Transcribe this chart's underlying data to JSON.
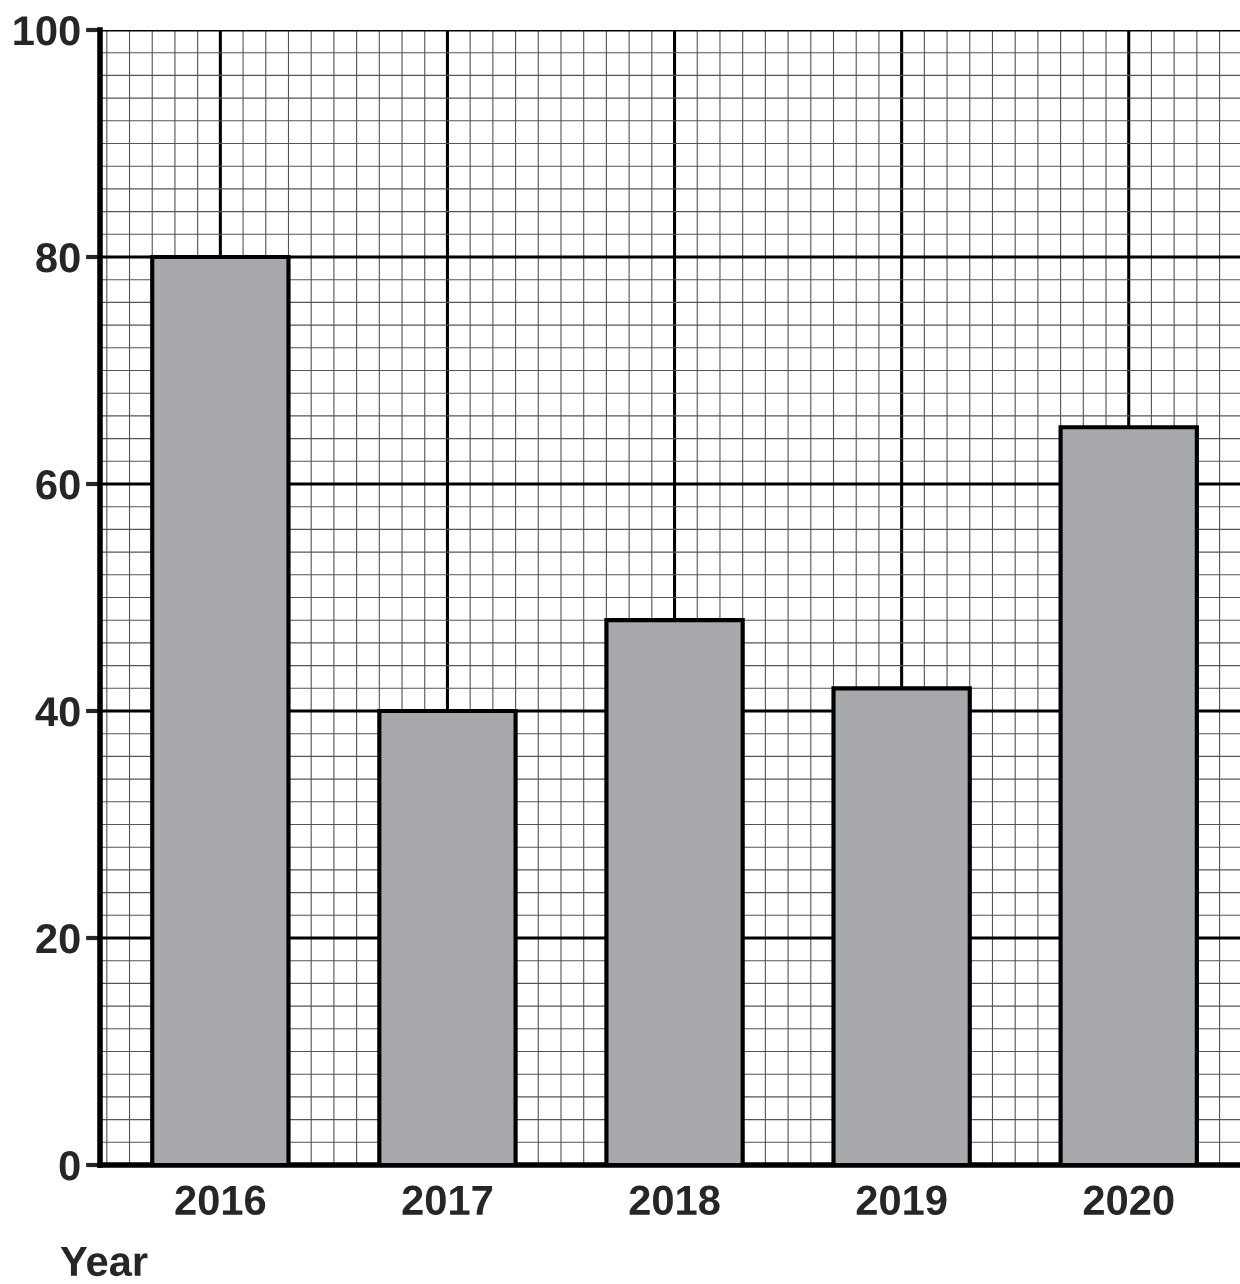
{
  "chart_data": {
    "type": "bar",
    "xlabel": "Year",
    "categories": [
      "2016",
      "2017",
      "2018",
      "2019",
      "2020"
    ],
    "values": [
      80,
      40,
      48,
      42,
      65
    ],
    "color": "#a7a9ac",
    "ylim": [
      0,
      100
    ],
    "yticks": [
      0,
      20,
      40,
      60,
      80,
      100
    ],
    "grid": true
  }
}
